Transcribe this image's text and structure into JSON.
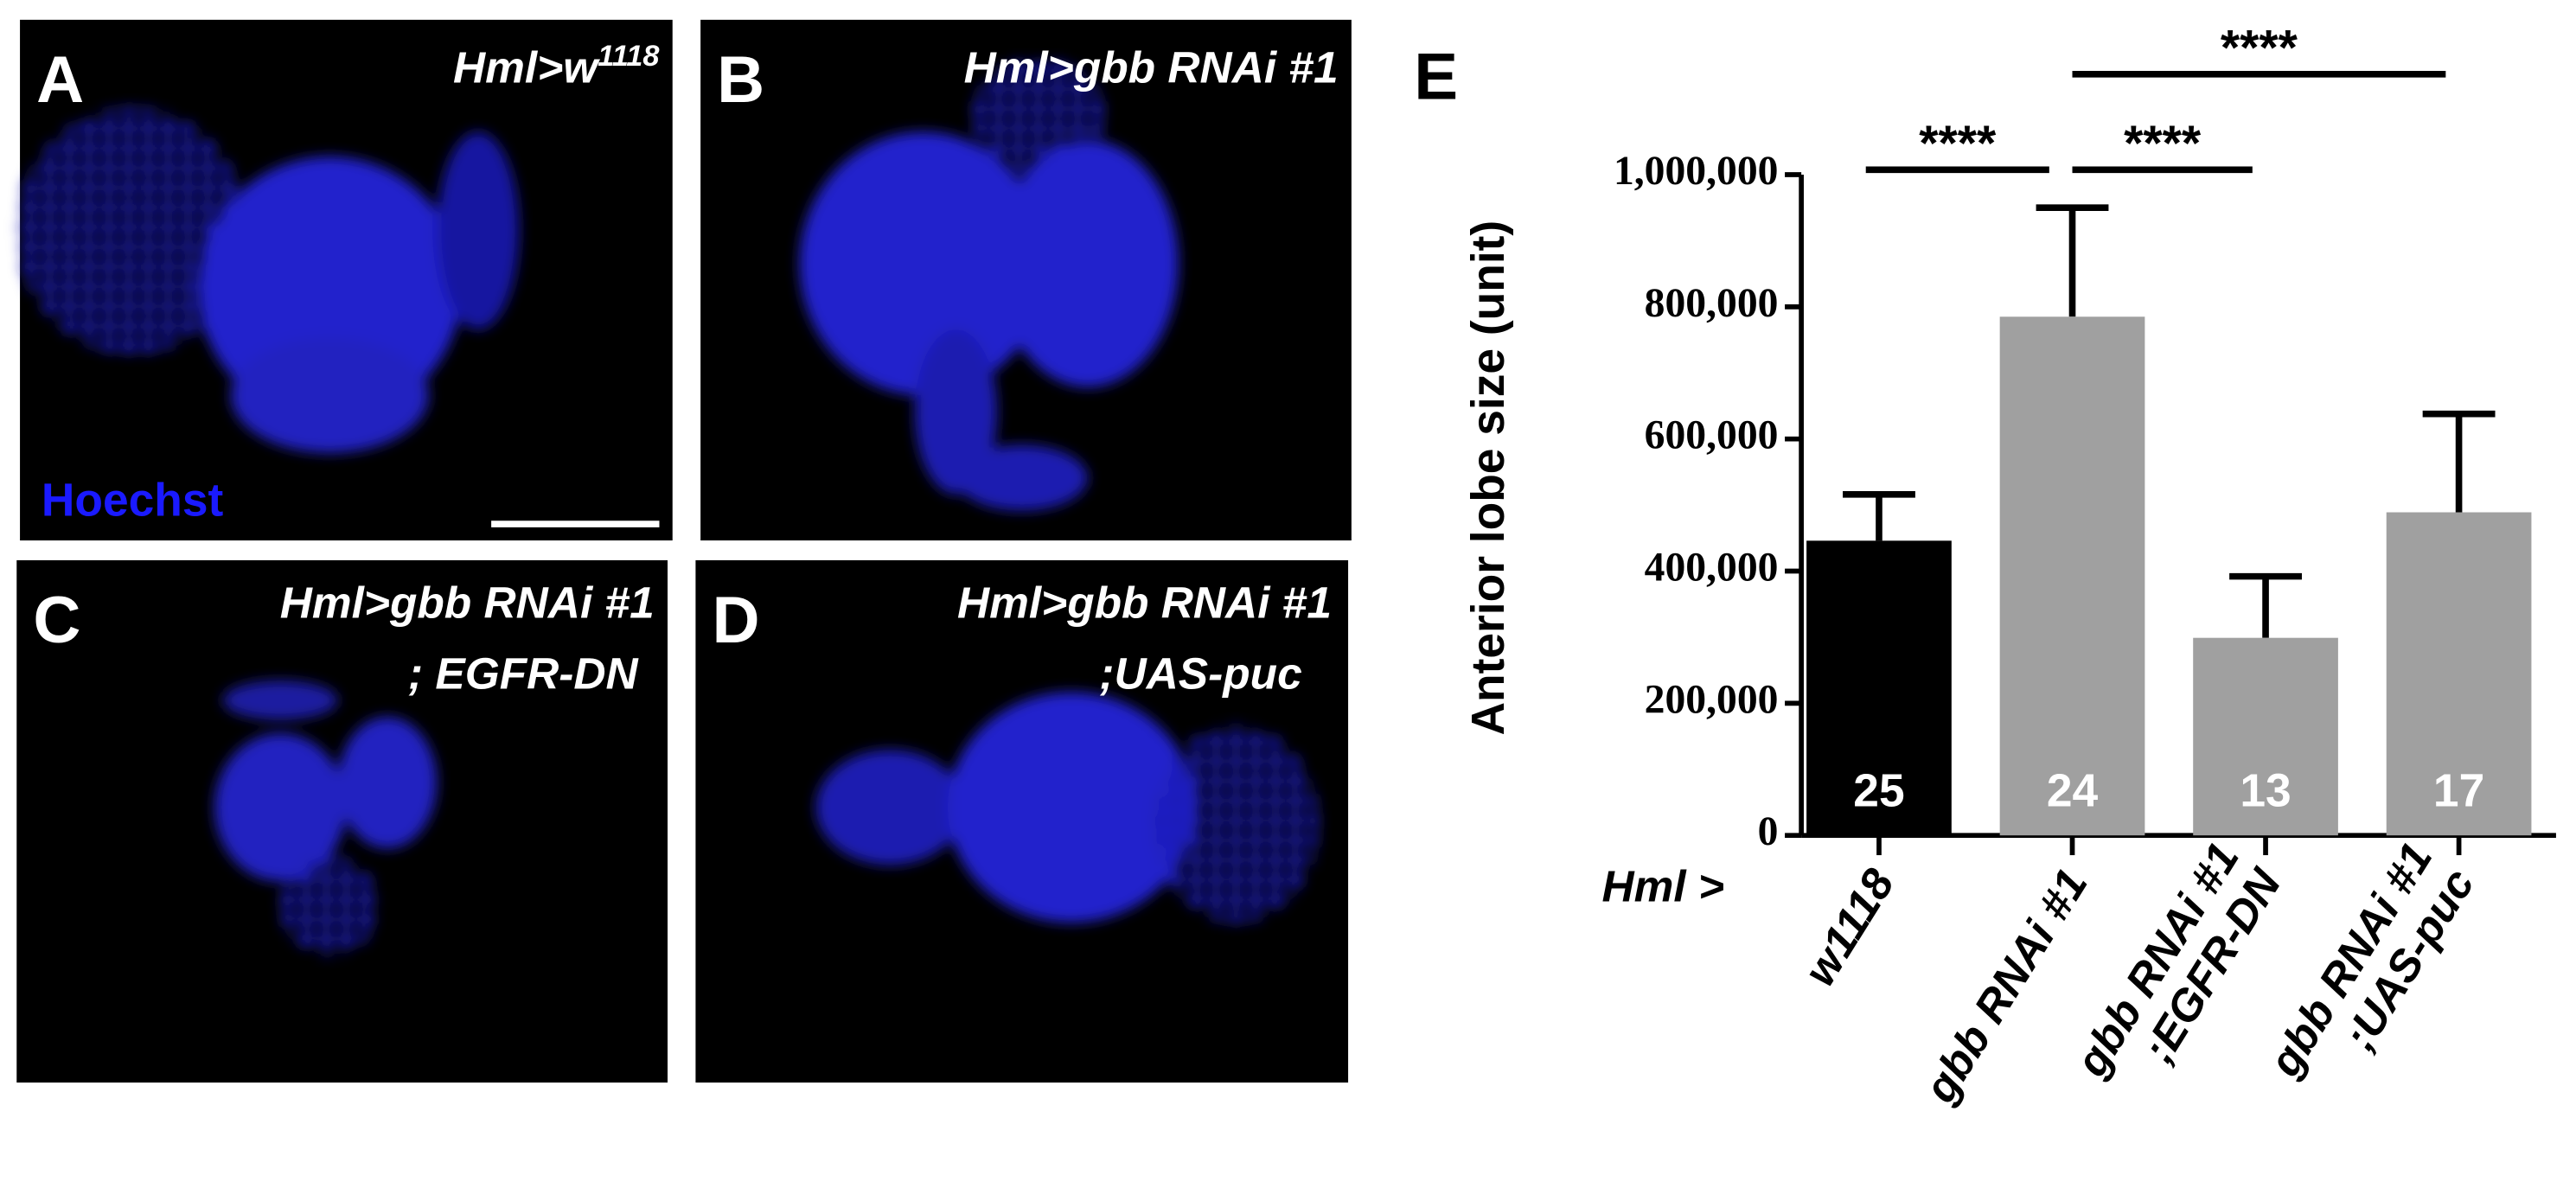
{
  "panels": [
    {
      "letter": "A",
      "title": "Hml>w",
      "title_sup": "1118",
      "stain": "Hoechst"
    },
    {
      "letter": "B",
      "title": "Hml>gbb RNAi #1"
    },
    {
      "letter": "C",
      "title": "Hml>gbb RNAi #1",
      "subtitle": "; EGFR-DN"
    },
    {
      "letter": "D",
      "title": "Hml>gbb RNAi #1",
      "subtitle": ";UAS-puc"
    }
  ],
  "chart_data": {
    "type": "bar",
    "panel_label": "E",
    "ylabel": "Anterior lobe size (unit)",
    "xlabel": "Hml >",
    "categories": [
      "w1118",
      "gbb RNAi #1",
      "gbb RNAi #1\n;EGFR-DN",
      "gbb RNAi #1\n;UAS-puc"
    ],
    "values": [
      446000,
      785000,
      299000,
      489000
    ],
    "errors": [
      70000,
      165000,
      93000,
      149000
    ],
    "counts": [
      25,
      24,
      13,
      17
    ],
    "colors": [
      "#000000",
      "#a0a0a0",
      "#a0a0a0",
      "#a0a0a0"
    ],
    "ylim": [
      0,
      1000000
    ],
    "yticks": [
      0,
      {
        "value": 200000,
        "label": "200,000"
      },
      {
        "value": 400000,
        "label": "400,000"
      },
      {
        "value": 600000,
        "label": "600,000"
      },
      {
        "value": 800000,
        "label": "800,000"
      },
      {
        "value": 1000000,
        "label": "1,000,000"
      }
    ],
    "significance": [
      {
        "from": 0,
        "to": 1,
        "label": "****"
      },
      {
        "from": 1,
        "to": 2,
        "label": "****"
      },
      {
        "from": 1,
        "to": 3,
        "label": "****"
      }
    ]
  }
}
